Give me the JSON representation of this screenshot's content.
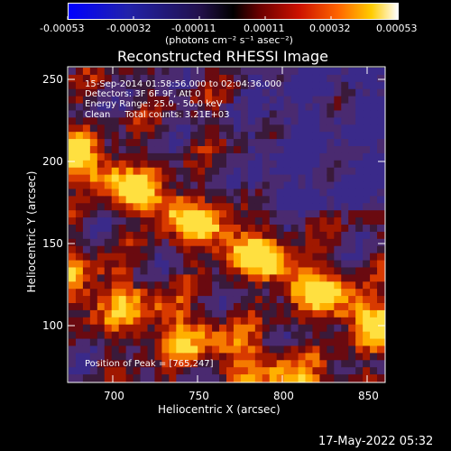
{
  "colorbar": {
    "tick_labels": [
      "-0.00053",
      "-0.00032",
      "-0.00011",
      "0.00011",
      "0.00032",
      "0.00053"
    ],
    "units": "(photons cm⁻² s⁻¹ asec⁻²)"
  },
  "title": "Reconstructed RHESSI Image",
  "overlay": {
    "time_range": "15-Sep-2014 01:58:56.000 to 02:04:36.000",
    "detectors": "Detectors: 3F 6F 9F, Att 0",
    "energy_range": "Energy Range: 25.0 - 50.0 keV",
    "clean": "Clean     Total counts: 3.21E+03",
    "peak": "Position of Peak = [765,247]"
  },
  "axes": {
    "xlabel": "Heliocentric X (arcsec)",
    "ylabel": "Heliocentric Y (arcsec)",
    "xticks": [
      "700",
      "750",
      "800",
      "850"
    ],
    "yticks": [
      "250",
      "200",
      "150",
      "100"
    ]
  },
  "footer_timestamp": "17-May-2022 05:32",
  "colors": {
    "axis": "#ffffff",
    "background_purple": "#4a2a78",
    "hot": "#ffd000"
  }
}
